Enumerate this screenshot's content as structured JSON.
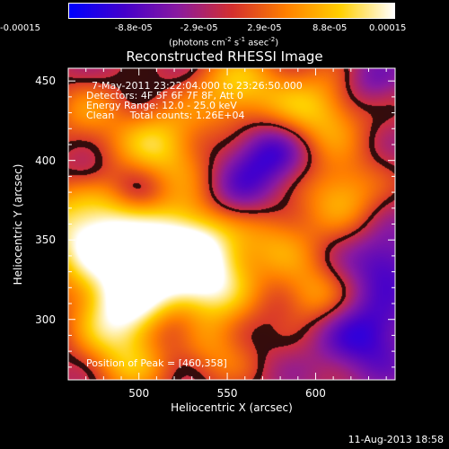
{
  "chart_data": {
    "type": "heatmap",
    "title": "Reconstructed RHESSI Image",
    "xlabel": "Heliocentric X (arcsec)",
    "ylabel": "Heliocentric Y (arcsec)",
    "xlim": [
      460,
      645
    ],
    "ylim": [
      262,
      458
    ],
    "xticks": [
      "500",
      "550",
      "600"
    ],
    "yticks": [
      "300",
      "350",
      "400",
      "450"
    ],
    "colorbar": {
      "ticks": [
        "-0.00015",
        "-8.8e-05",
        "-2.9e-05",
        "2.9e-05",
        "8.8e-05",
        "0.00015"
      ],
      "range": [
        -0.00015,
        0.00015
      ],
      "units_prefix": "(photons cm",
      "units_exp1": "-2",
      "units_mid": " s",
      "units_exp2": "-1",
      "units_mid2": " asec",
      "units_exp3": "-2",
      "units_suffix": ")"
    },
    "annotations": {
      "time_range": "7-May-2011 23:22:04.000 to 23:26:50.000",
      "detectors": "Detectors: 4F 5F 6F 7F 8F, Att 0",
      "energy": "Energy Range: 12.0 - 25.0 keV",
      "algorithm": "Clean     Total counts: 1.26E+04",
      "peak": "Position of Peak = [460,358]"
    },
    "grid": false,
    "colormap": [
      "#0000ff",
      "#4400cc",
      "#8a1aa0",
      "#d43030",
      "#ff8000",
      "#ffd000",
      "#ffffff"
    ],
    "blobs": [
      {
        "x": 470,
        "y": 358,
        "v": 1.0,
        "s": 22
      },
      {
        "x": 500,
        "y": 330,
        "v": 0.9,
        "s": 24
      },
      {
        "x": 488,
        "y": 300,
        "v": 0.75,
        "s": 18
      },
      {
        "x": 530,
        "y": 350,
        "v": 0.95,
        "s": 22
      },
      {
        "x": 540,
        "y": 320,
        "v": 0.7,
        "s": 18
      },
      {
        "x": 512,
        "y": 410,
        "v": 0.8,
        "s": 18
      },
      {
        "x": 555,
        "y": 445,
        "v": 0.75,
        "s": 18
      },
      {
        "x": 600,
        "y": 430,
        "v": 0.8,
        "s": 20
      },
      {
        "x": 615,
        "y": 380,
        "v": 0.65,
        "s": 16
      },
      {
        "x": 580,
        "y": 350,
        "v": 0.5,
        "s": 18
      },
      {
        "x": 598,
        "y": 315,
        "v": 0.55,
        "s": 14
      },
      {
        "x": 545,
        "y": 280,
        "v": 0.45,
        "s": 16
      },
      {
        "x": 470,
        "y": 430,
        "v": 0.45,
        "s": 16
      },
      {
        "x": 495,
        "y": 270,
        "v": 0.5,
        "s": 16
      },
      {
        "x": 575,
        "y": 405,
        "v": -0.7,
        "s": 16
      },
      {
        "x": 555,
        "y": 375,
        "v": -0.45,
        "s": 14
      },
      {
        "x": 630,
        "y": 290,
        "v": -0.6,
        "s": 18
      },
      {
        "x": 640,
        "y": 335,
        "v": -0.5,
        "s": 14
      },
      {
        "x": 500,
        "y": 378,
        "v": -0.35,
        "s": 12
      },
      {
        "x": 470,
        "y": 392,
        "v": -0.3,
        "s": 10
      },
      {
        "x": 520,
        "y": 295,
        "v": -0.35,
        "s": 12
      },
      {
        "x": 630,
        "y": 450,
        "v": -0.35,
        "s": 12
      }
    ]
  },
  "timestamp": "11-Aug-2013 18:58"
}
